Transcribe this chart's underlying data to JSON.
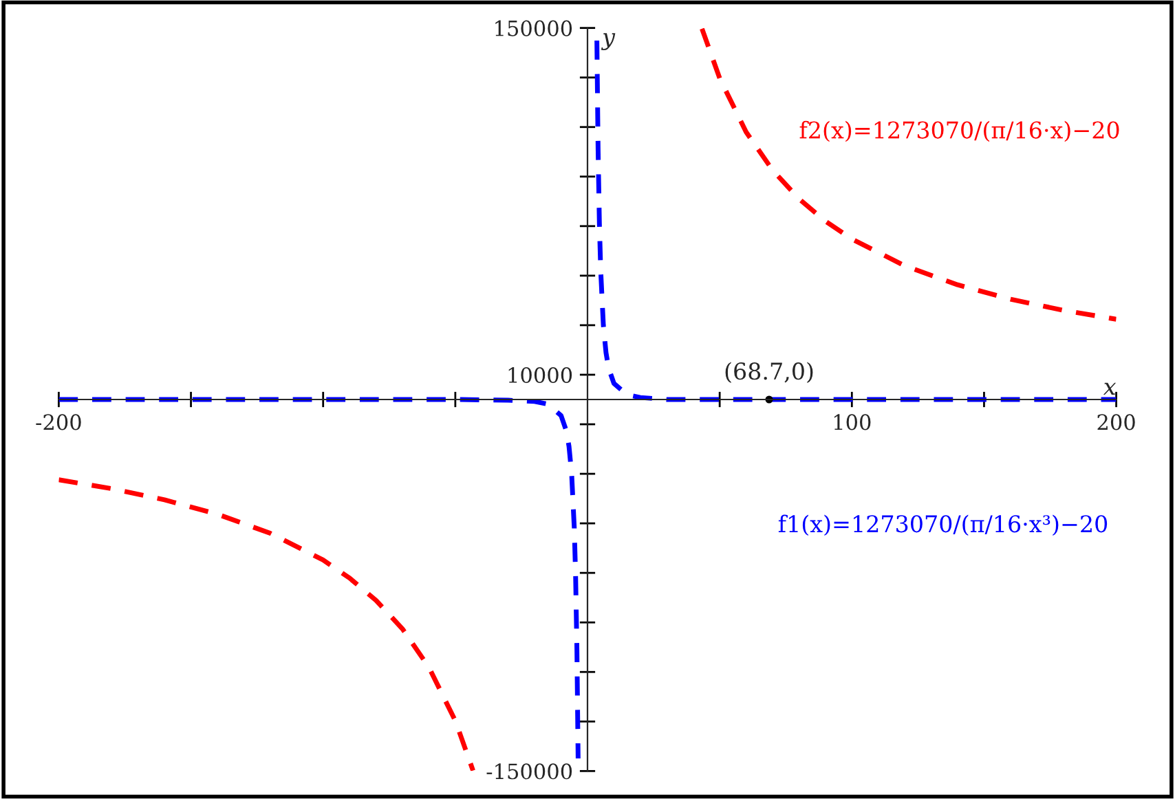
{
  "chart_data": {
    "type": "line",
    "xlabel": "x",
    "ylabel": "y",
    "xlim": [
      -200,
      200
    ],
    "ylim": [
      -150000,
      150000
    ],
    "xticks": [
      -200,
      {
        "value": -150,
        "label": null
      },
      {
        "value": -100,
        "label": null
      },
      {
        "value": -50,
        "label": null
      },
      {
        "value": 50,
        "label": null
      },
      100,
      {
        "value": 150,
        "label": null
      },
      200
    ],
    "yticks": [
      -150000,
      {
        "value": -130000,
        "label": null
      },
      {
        "value": -110000,
        "label": null
      },
      {
        "value": -90000,
        "label": null
      },
      {
        "value": -70000,
        "label": null
      },
      {
        "value": -50000,
        "label": null
      },
      {
        "value": -30000,
        "label": null
      },
      {
        "value": -10000,
        "label": null
      },
      10000,
      {
        "value": 30000,
        "label": null
      },
      {
        "value": 50000,
        "label": null
      },
      {
        "value": 70000,
        "label": null
      },
      {
        "value": 90000,
        "label": null
      },
      {
        "value": 110000,
        "label": null
      },
      {
        "value": 130000,
        "label": null
      },
      150000
    ],
    "line_style": "dashed",
    "marker": "none",
    "grid": false,
    "legend": false,
    "series": [
      {
        "name": "f2(x)=1273070/(π/16·x)−20",
        "color": "#ff0000",
        "x": [
          -200,
          -180,
          -160,
          -140,
          -120,
          -100,
          -90,
          -80,
          -70,
          -60,
          -50,
          -43.3,
          null,
          43.3,
          50,
          60,
          70,
          80,
          90,
          100,
          120,
          140,
          160,
          180,
          200
        ],
        "values": [
          -32400,
          -36000,
          -40500,
          -46300,
          -54000,
          -64800,
          -72100,
          -81100,
          -92600,
          -108100,
          -129700,
          -149800,
          null,
          149700,
          129700,
          108000,
          92600,
          81000,
          72000,
          64800,
          54000,
          46300,
          40500,
          36000,
          32400
        ]
      },
      {
        "name": "f1(x)=1273070/(π/16·x³)−20",
        "color": "#0000ff",
        "x": [
          -200,
          -150,
          -100,
          -50,
          -30,
          -20,
          -15,
          -10,
          -8,
          -7,
          -6,
          -5,
          -4.5,
          -4,
          -3.55,
          null,
          3.55,
          4,
          4.5,
          5,
          6,
          7,
          8,
          10,
          15,
          20,
          30,
          50,
          100,
          150,
          200
        ],
        "values": [
          0,
          0,
          0,
          0,
          -300,
          -800,
          -1900,
          -6500,
          -12700,
          -18900,
          -30000,
          -51900,
          -71200,
          -101300,
          -144900,
          null,
          144900,
          101300,
          71100,
          51900,
          30000,
          18900,
          12600,
          6500,
          1900,
          800,
          0,
          0,
          0,
          0,
          0
        ]
      }
    ],
    "annotations": [
      {
        "text": "(68.7,0)",
        "x": 68.7,
        "y": 0
      }
    ]
  }
}
